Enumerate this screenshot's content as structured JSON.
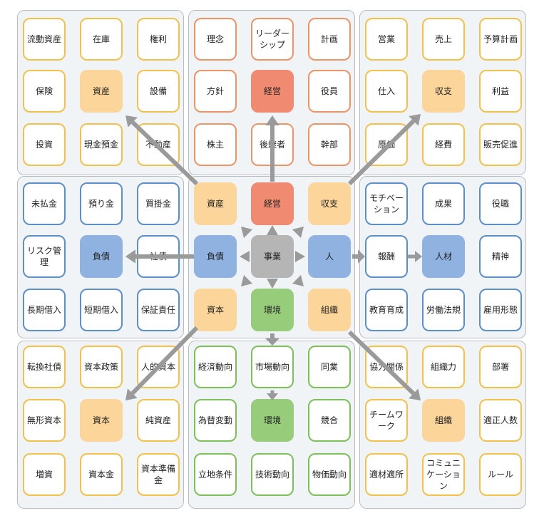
{
  "colors": {
    "yellow_border": "#f2c14a",
    "orange_border": "#ec9466",
    "blue_border": "#5b8fcc",
    "green_border": "#7cc05a",
    "orange_fill": "#fbd59a",
    "salmon_fill": "#f08a70",
    "blue_fill": "#8fb2e0",
    "green_fill": "#96cc7a",
    "gray_fill": "#b5b5b5",
    "panel_bg": "#f1f4f7",
    "arrow": "#9a9a9a"
  },
  "panels": [
    {
      "id": "asset",
      "cards": [
        "流動資産",
        "在庫",
        "権利",
        "保険",
        "資産",
        "設備",
        "投資",
        "現金預金",
        "不動産"
      ]
    },
    {
      "id": "management",
      "cards": [
        "理念",
        "リーダーシップ",
        "計画",
        "方針",
        "経営",
        "役員",
        "株主",
        "後継者",
        "幹部"
      ]
    },
    {
      "id": "revenue",
      "cards": [
        "営業",
        "売上",
        "予算計画",
        "仕入",
        "収支",
        "利益",
        "原価",
        "経費",
        "販売促進"
      ]
    },
    {
      "id": "liability",
      "cards": [
        "未払金",
        "預り金",
        "買掛金",
        "リスク管理",
        "負債",
        "社債",
        "長期借入",
        "短期借入",
        "保証責任"
      ]
    },
    {
      "id": "business",
      "cards": [
        "資産",
        "経営",
        "収支",
        "負債",
        "事業",
        "人",
        "資本",
        "環境",
        "組織"
      ]
    },
    {
      "id": "people",
      "cards": [
        "モチベーション",
        "成果",
        "役職",
        "報酬",
        "人材",
        "精神",
        "教育育成",
        "労働法規",
        "雇用形態"
      ]
    },
    {
      "id": "capital",
      "cards": [
        "転換社債",
        "資本政策",
        "人的資本",
        "無形資本",
        "資本",
        "純資産",
        "増資",
        "資本金",
        "資本準備金"
      ]
    },
    {
      "id": "environment",
      "cards": [
        "経済動向",
        "市場動向",
        "同業",
        "為替変動",
        "環境",
        "競合",
        "立地条件",
        "技術動向",
        "物価動向"
      ]
    },
    {
      "id": "organization",
      "cards": [
        "協力関係",
        "組織力",
        "部署",
        "チームワーク",
        "組織",
        "適正人数",
        "適材適所",
        "コミュニケーション",
        "ルール"
      ]
    }
  ]
}
